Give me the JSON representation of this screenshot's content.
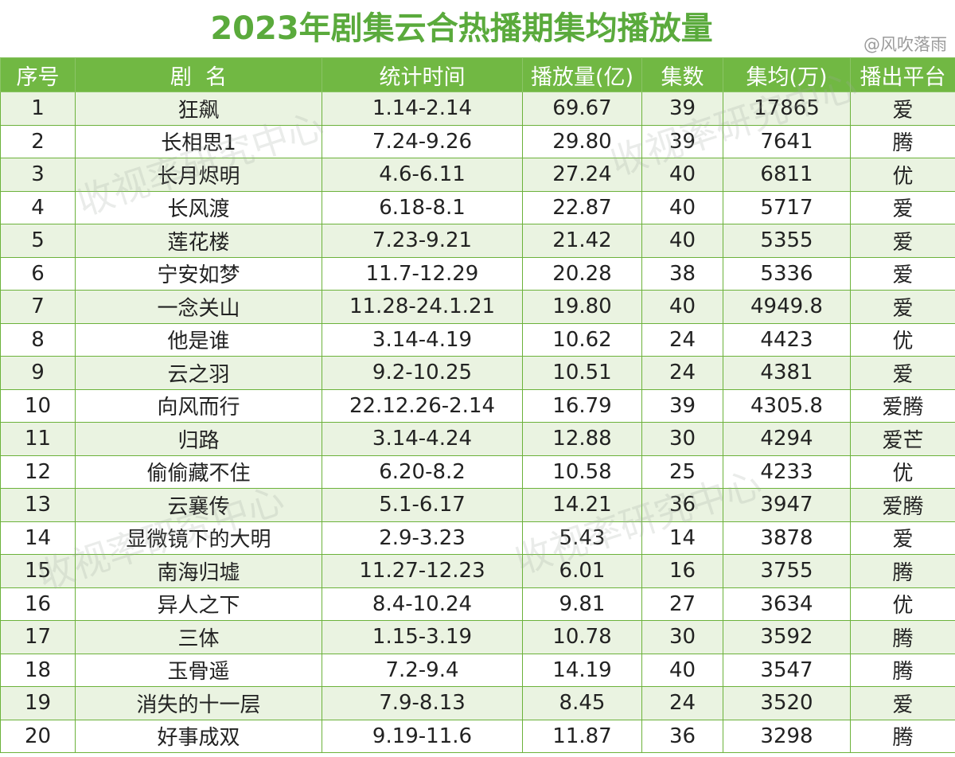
{
  "title": "2023年剧集云合热播期集均播放量",
  "credit": "@风吹落雨",
  "watermark": "收视率研究中心",
  "headers": [
    "序号",
    "剧  名",
    "统计时间",
    "播放量(亿)",
    "集数",
    "集均(万)",
    "播出平台"
  ],
  "rows": [
    [
      "1",
      "狂飙",
      "1.14-2.14",
      "69.67",
      "39",
      "17865",
      "爱"
    ],
    [
      "2",
      "长相思1",
      "7.24-9.26",
      "29.80",
      "39",
      "7641",
      "腾"
    ],
    [
      "3",
      "长月烬明",
      "4.6-6.11",
      "27.24",
      "40",
      "6811",
      "优"
    ],
    [
      "4",
      "长风渡",
      "6.18-8.1",
      "22.87",
      "40",
      "5717",
      "爱"
    ],
    [
      "5",
      "莲花楼",
      "7.23-9.21",
      "21.42",
      "40",
      "5355",
      "爱"
    ],
    [
      "6",
      "宁安如梦",
      "11.7-12.29",
      "20.28",
      "38",
      "5336",
      "爱"
    ],
    [
      "7",
      "一念关山",
      "11.28-24.1.21",
      "19.80",
      "40",
      "4949.8",
      "爱"
    ],
    [
      "8",
      "他是谁",
      "3.14-4.19",
      "10.62",
      "24",
      "4423",
      "优"
    ],
    [
      "9",
      "云之羽",
      "9.2-10.25",
      "10.51",
      "24",
      "4381",
      "爱"
    ],
    [
      "10",
      "向风而行",
      "22.12.26-2.14",
      "16.79",
      "39",
      "4305.8",
      "爱腾"
    ],
    [
      "11",
      "归路",
      "3.14-4.24",
      "12.88",
      "30",
      "4294",
      "爱芒"
    ],
    [
      "12",
      "偷偷藏不住",
      "6.20-8.2",
      "10.58",
      "25",
      "4233",
      "优"
    ],
    [
      "13",
      "云襄传",
      "5.1-6.17",
      "14.21",
      "36",
      "3947",
      "爱腾"
    ],
    [
      "14",
      "显微镜下的大明",
      "2.9-3.23",
      "5.43",
      "14",
      "3878",
      "爱"
    ],
    [
      "15",
      "南海归墟",
      "11.27-12.23",
      "6.01",
      "16",
      "3755",
      "腾"
    ],
    [
      "16",
      "异人之下",
      "8.4-10.24",
      "9.81",
      "27",
      "3634",
      "优"
    ],
    [
      "17",
      "三体",
      "1.15-3.19",
      "10.78",
      "30",
      "3592",
      "腾"
    ],
    [
      "18",
      "玉骨遥",
      "7.2-9.4",
      "14.19",
      "40",
      "3547",
      "腾"
    ],
    [
      "19",
      "消失的十一层",
      "7.9-8.13",
      "8.45",
      "24",
      "3520",
      "爱"
    ],
    [
      "20",
      "好事成双",
      "9.19-11.6",
      "11.87",
      "36",
      "3298",
      "腾"
    ]
  ]
}
